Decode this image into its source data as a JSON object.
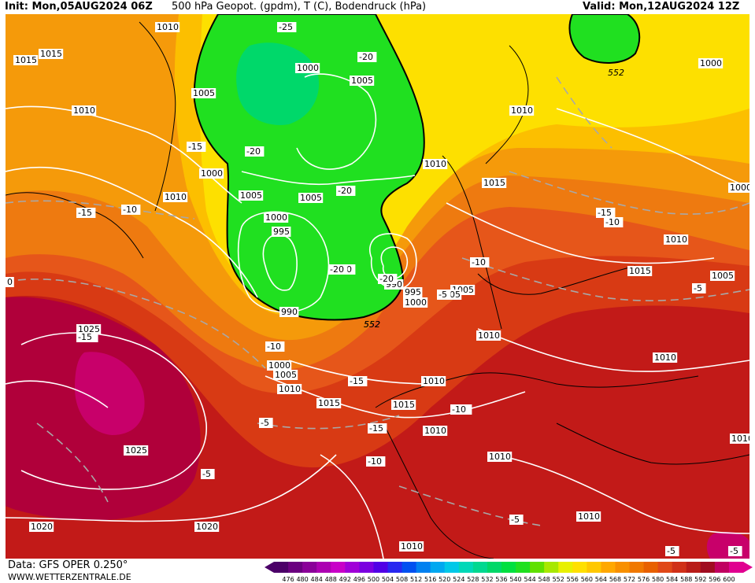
{
  "header": {
    "init": "Init: Mon,05AUG2024 06Z",
    "title": "500 hPa Geopot. (gpdm), T (C), Bodendruck (hPa)",
    "valid": "Valid: Mon,12AUG2024 12Z"
  },
  "footer": {
    "data_source": "Data: GFS OPER 0.250°",
    "website": "WWW.WETTERZENTRALE.DE"
  },
  "legend": {
    "ticks": [
      "476",
      "480",
      "484",
      "488",
      "492",
      "496",
      "500",
      "504",
      "508",
      "512",
      "516",
      "520",
      "524",
      "528",
      "532",
      "536",
      "540",
      "544",
      "548",
      "552",
      "556",
      "560",
      "564",
      "568",
      "572",
      "576",
      "580",
      "584",
      "588",
      "592",
      "596",
      "600"
    ],
    "colors": [
      "#4b0068",
      "#6a0080",
      "#8a0099",
      "#ac00b2",
      "#c800c8",
      "#a000d8",
      "#7a00e0",
      "#5000e6",
      "#2828f0",
      "#0050f0",
      "#0080f0",
      "#00a8f0",
      "#00c8e8",
      "#00d8b8",
      "#00d890",
      "#00d868",
      "#00e040",
      "#20e020",
      "#60e000",
      "#a8e800",
      "#e8f000",
      "#ffe000",
      "#ffc800",
      "#ffa800",
      "#f89000",
      "#f07800",
      "#e86000",
      "#e04818",
      "#d03018",
      "#b81c18",
      "#a00c20",
      "#c00060",
      "#e00090"
    ]
  },
  "map_labels": {
    "pressure": [
      "1010",
      "1015",
      "1015",
      "1005",
      "1010",
      "1000",
      "1005",
      "1010",
      "1000",
      "995",
      "990",
      "1005",
      "1005",
      "1000",
      "1010",
      "1010",
      "1015",
      "1010",
      "1015",
      "1000",
      "1010",
      "1015",
      "1005",
      "1000",
      "1010",
      "1010",
      "1005",
      "1010",
      "1010",
      "1010",
      "1010",
      "1020",
      "1020",
      "1025",
      "1025",
      "990",
      "995",
      "1000",
      "1005",
      "1000",
      "1005",
      "1010",
      "1015",
      "1010"
    ],
    "temperature": [
      "-25",
      "-20",
      "-20",
      "-15",
      "-20",
      "-20",
      "-20",
      "-15",
      "-10",
      "-15",
      "-10",
      "-10",
      "-10",
      "-5",
      "-10",
      "-15",
      "-15",
      "-10",
      "-10",
      "-5",
      "-5",
      "-5",
      "-5",
      "-5",
      "-5",
      "-5",
      "-20",
      "-15"
    ],
    "geopotential": [
      "552",
      "552",
      "552"
    ],
    "edge_zero": "0"
  },
  "colors": {
    "pink_core": "#c8006a",
    "magenta": "#b0003a",
    "dark_red": "#c21a18",
    "red": "#d83a14",
    "orange_red": "#e6561a",
    "orange": "#ee7a10",
    "light_orange": "#f59a0a",
    "amber": "#fcbf00",
    "yellow": "#fde000",
    "lime": "#e8f000",
    "green": "#20e020",
    "bright_green": "#00d86a"
  }
}
